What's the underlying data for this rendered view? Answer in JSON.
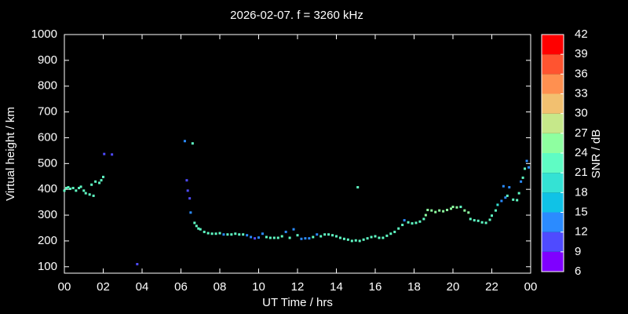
{
  "chart_data": {
    "type": "scatter",
    "title": "2026-02-07. f = 3260 kHz",
    "x_label": "UT Time / hrs",
    "y_label": "Virtual height / km",
    "xlim": [
      0,
      24
    ],
    "ylim": [
      75,
      1000
    ],
    "xticks": [
      {
        "value": 0,
        "label": "00"
      },
      {
        "value": 2,
        "label": "02"
      },
      {
        "value": 4,
        "label": "04"
      },
      {
        "value": 6,
        "label": "06"
      },
      {
        "value": 8,
        "label": "08"
      },
      10,
      12,
      14,
      16,
      18,
      20,
      22,
      {
        "value": 24,
        "label": "00"
      }
    ],
    "yticks": [
      100,
      200,
      300,
      400,
      500,
      600,
      700,
      800,
      900,
      1000
    ],
    "colorbar": {
      "label": "SNR / dB",
      "ticks": [
        6,
        9,
        12,
        15,
        18,
        21,
        24,
        27,
        30,
        33,
        36,
        39,
        42
      ],
      "colors": [
        "#7f00ff",
        "#4f4bff",
        "#2b8bff",
        "#10c2e6",
        "#34e2d4",
        "#5ffcc4",
        "#8effa0",
        "#c6e88a",
        "#f2c070",
        "#ff9050",
        "#ff5430",
        "#ff0000"
      ]
    },
    "x": [
      0.0,
      0.1,
      0.2,
      0.3,
      0.45,
      0.6,
      0.75,
      0.85,
      1.0,
      1.1,
      1.3,
      1.5,
      1.4,
      1.6,
      1.8,
      1.9,
      2.0,
      2.05,
      2.45,
      3.75,
      6.2,
      6.3,
      6.35,
      6.45,
      6.5,
      6.6,
      6.7,
      6.8,
      6.9,
      7.0,
      7.2,
      7.4,
      7.6,
      7.8,
      8.0,
      8.2,
      8.4,
      8.6,
      8.8,
      9.0,
      9.2,
      9.4,
      9.6,
      9.8,
      10.0,
      10.2,
      10.4,
      10.6,
      10.8,
      11.0,
      11.2,
      11.4,
      11.6,
      11.8,
      12.0,
      12.2,
      12.4,
      12.6,
      12.8,
      13.0,
      13.2,
      13.4,
      13.6,
      13.8,
      14.0,
      14.2,
      14.4,
      14.6,
      14.8,
      15.0,
      15.1,
      15.2,
      15.4,
      15.6,
      15.8,
      16.0,
      16.2,
      16.4,
      16.6,
      16.8,
      17.0,
      17.2,
      17.4,
      17.5,
      17.7,
      17.9,
      18.1,
      18.3,
      18.5,
      18.6,
      18.7,
      18.9,
      19.1,
      19.3,
      19.5,
      19.7,
      19.9,
      20.0,
      20.2,
      20.4,
      20.6,
      20.8,
      20.9,
      21.1,
      21.3,
      21.5,
      21.7,
      21.9,
      22.0,
      22.2,
      22.3,
      22.5,
      22.7,
      22.6,
      22.9,
      22.8,
      23.1,
      23.3,
      23.4,
      23.5,
      23.6,
      23.7,
      23.8,
      23.9
    ],
    "y": [
      395,
      405,
      408,
      402,
      405,
      395,
      405,
      410,
      395,
      385,
      380,
      375,
      418,
      430,
      425,
      435,
      448,
      537,
      535,
      110,
      587,
      435,
      395,
      365,
      310,
      578,
      270,
      258,
      248,
      245,
      235,
      230,
      228,
      228,
      230,
      225,
      225,
      225,
      228,
      225,
      225,
      222,
      215,
      210,
      213,
      228,
      215,
      212,
      212,
      212,
      218,
      235,
      212,
      245,
      222,
      208,
      210,
      210,
      215,
      225,
      218,
      225,
      225,
      222,
      218,
      212,
      208,
      205,
      200,
      202,
      408,
      200,
      205,
      210,
      215,
      218,
      212,
      212,
      220,
      228,
      235,
      248,
      262,
      280,
      272,
      268,
      270,
      275,
      285,
      300,
      320,
      318,
      312,
      318,
      315,
      320,
      325,
      332,
      330,
      332,
      318,
      310,
      285,
      280,
      278,
      272,
      270,
      282,
      298,
      318,
      340,
      355,
      368,
      412,
      408,
      375,
      360,
      358,
      385,
      430,
      445,
      480,
      510,
      485
    ],
    "snr": [
      21,
      21,
      21,
      21,
      21,
      22,
      21,
      22,
      22,
      21,
      21,
      21,
      21,
      21,
      22,
      21,
      21,
      11,
      11,
      11,
      12,
      10,
      11,
      11,
      12,
      21,
      21,
      22,
      21,
      21,
      22,
      21,
      22,
      21,
      22,
      14,
      21,
      21,
      22,
      21,
      21,
      14,
      12,
      11,
      14,
      12,
      21,
      21,
      22,
      21,
      21,
      12,
      21,
      12,
      21,
      14,
      14,
      14,
      21,
      14,
      21,
      21,
      22,
      21,
      21,
      22,
      21,
      21,
      21,
      22,
      22,
      21,
      21,
      22,
      21,
      21,
      21,
      21,
      22,
      21,
      21,
      22,
      22,
      14,
      22,
      22,
      22,
      22,
      22,
      25,
      25,
      25,
      25,
      25,
      25,
      25,
      25,
      24,
      25,
      22,
      25,
      25,
      22,
      22,
      22,
      22,
      21,
      21,
      21,
      21,
      20,
      14,
      14,
      14,
      14,
      22,
      22,
      21,
      21,
      13,
      22,
      22,
      12,
      12
    ]
  }
}
